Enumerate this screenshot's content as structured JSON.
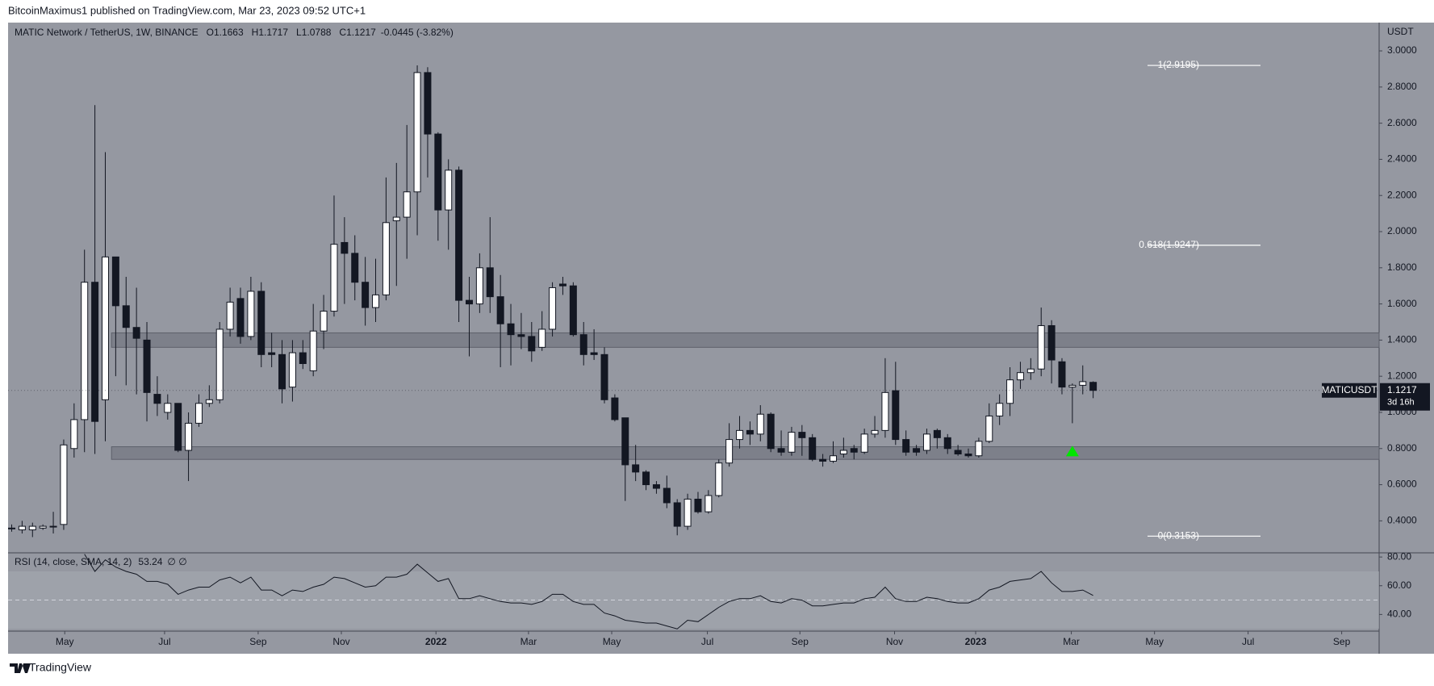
{
  "header": {
    "text": "BitcoinMaximus1 published on TradingView.com, Mar 23, 2023 09:52 UTC+1"
  },
  "footer": {
    "brand": "TradingView"
  },
  "chart_data": {
    "type": "candlestick",
    "title": "MATIC Network / TetherUS, 1W, BINANCE",
    "legend": [
      {
        "key": "O",
        "value": 1.1663
      },
      {
        "key": "H",
        "value": 1.1717
      },
      {
        "key": "L",
        "value": 1.0788
      },
      {
        "key": "C",
        "value": 1.1217
      }
    ],
    "change_label": "-0.0445 (-3.82%)",
    "axis_unit": "USDT",
    "symbol": "MATICUSDT",
    "last_price": 1.1217,
    "countdown": "3d 16h",
    "up_color": "#ffffff",
    "down_color": "#131722",
    "open": [
      0.36,
      0.35,
      0.35,
      0.36,
      0.37,
      0.38,
      0.8,
      0.96,
      1.72,
      1.07,
      1.86,
      1.59,
      1.47,
      1.4,
      1.1,
      1.0,
      1.05,
      0.79,
      0.94,
      1.05,
      1.07,
      1.46,
      1.63,
      1.42,
      1.67,
      1.33,
      1.32,
      1.14,
      1.33,
      1.23,
      1.45,
      1.56,
      1.94,
      1.88,
      1.72,
      1.58,
      1.65,
      2.06,
      2.08,
      2.22,
      2.88,
      2.54,
      2.12,
      2.34,
      1.62,
      1.6,
      1.8,
      1.64,
      1.49,
      1.43,
      1.42,
      1.36,
      1.46,
      1.71,
      1.7,
      1.43,
      1.33,
      1.32,
      1.08,
      0.97,
      0.71,
      0.67,
      0.6,
      0.58,
      0.5,
      0.37,
      0.52,
      0.45,
      0.54,
      0.72,
      0.85,
      0.9,
      0.88,
      0.99,
      0.8,
      0.78,
      0.89,
      0.86,
      0.74,
      0.73,
      0.77,
      0.8,
      0.78,
      0.88,
      0.9,
      1.12,
      0.85,
      0.8,
      0.79,
      0.9,
      0.86,
      0.79,
      0.77,
      0.76,
      0.84,
      0.98,
      1.05,
      1.18,
      1.22,
      1.24,
      1.48,
      1.28,
      1.14,
      1.15,
      1.1663
    ],
    "high": [
      0.38,
      0.4,
      0.39,
      0.38,
      0.45,
      0.85,
      1.05,
      1.9,
      2.7,
      2.44,
      1.86,
      1.75,
      1.69,
      1.5,
      1.2,
      1.1,
      1.05,
      1.0,
      1.1,
      1.15,
      1.5,
      1.69,
      1.69,
      1.75,
      1.72,
      1.44,
      1.4,
      1.4,
      1.4,
      1.6,
      1.65,
      2.2,
      2.08,
      1.98,
      1.86,
      1.85,
      2.3,
      2.38,
      2.59,
      2.92,
      2.91,
      2.55,
      2.4,
      2.36,
      1.75,
      1.88,
      2.08,
      1.76,
      1.6,
      1.55,
      1.5,
      1.56,
      1.72,
      1.75,
      1.72,
      1.5,
      1.46,
      1.36,
      1.1,
      0.97,
      0.82,
      0.68,
      0.62,
      0.65,
      0.52,
      0.55,
      0.56,
      0.57,
      0.74,
      0.94,
      0.98,
      0.95,
      1.04,
      1.0,
      0.9,
      0.92,
      0.93,
      0.88,
      0.77,
      0.84,
      0.86,
      0.82,
      0.91,
      0.98,
      1.3,
      1.28,
      0.9,
      0.82,
      0.91,
      0.91,
      0.88,
      0.82,
      0.8,
      0.86,
      1.05,
      1.1,
      1.25,
      1.28,
      1.3,
      1.58,
      1.51,
      1.3,
      1.16,
      1.26,
      1.1717
    ],
    "low": [
      0.34,
      0.33,
      0.31,
      0.35,
      0.33,
      0.35,
      0.75,
      0.78,
      0.77,
      0.84,
      1.2,
      1.15,
      1.1,
      0.95,
      0.98,
      0.96,
      0.78,
      0.62,
      0.92,
      1.03,
      1.05,
      1.42,
      1.38,
      1.4,
      1.25,
      1.25,
      1.05,
      1.06,
      1.24,
      1.2,
      1.35,
      1.53,
      1.6,
      1.62,
      1.48,
      1.5,
      1.62,
      1.7,
      1.85,
      1.98,
      2.3,
      1.95,
      1.9,
      1.5,
      1.31,
      1.55,
      1.55,
      1.25,
      1.26,
      1.35,
      1.28,
      1.34,
      1.42,
      1.65,
      1.42,
      1.26,
      1.29,
      1.05,
      0.95,
      0.51,
      0.62,
      0.57,
      0.55,
      0.47,
      0.32,
      0.35,
      0.44,
      0.44,
      0.53,
      0.7,
      0.8,
      0.82,
      0.84,
      0.78,
      0.76,
      0.76,
      0.76,
      0.73,
      0.7,
      0.72,
      0.75,
      0.74,
      0.77,
      0.86,
      0.86,
      0.82,
      0.76,
      0.76,
      0.77,
      0.8,
      0.77,
      0.76,
      0.75,
      0.75,
      0.83,
      0.93,
      0.98,
      1.13,
      1.18,
      1.2,
      1.16,
      1.1,
      0.94,
      1.1,
      1.0788
    ],
    "close": [
      0.36,
      0.37,
      0.37,
      0.37,
      0.37,
      0.82,
      0.96,
      1.72,
      0.95,
      1.86,
      1.59,
      1.47,
      1.41,
      1.11,
      1.05,
      1.05,
      0.79,
      0.94,
      1.05,
      1.07,
      1.46,
      1.61,
      1.42,
      1.67,
      1.32,
      1.32,
      1.13,
      1.33,
      1.27,
      1.45,
      1.56,
      1.93,
      1.88,
      1.72,
      1.58,
      1.65,
      2.05,
      2.08,
      2.22,
      2.88,
      2.54,
      2.12,
      2.34,
      1.62,
      1.6,
      1.8,
      1.64,
      1.49,
      1.43,
      1.42,
      1.34,
      1.46,
      1.69,
      1.7,
      1.43,
      1.32,
      1.32,
      1.07,
      0.96,
      0.71,
      0.67,
      0.6,
      0.58,
      0.5,
      0.37,
      0.52,
      0.45,
      0.54,
      0.72,
      0.85,
      0.9,
      0.88,
      0.99,
      0.8,
      0.78,
      0.89,
      0.86,
      0.74,
      0.73,
      0.76,
      0.79,
      0.78,
      0.88,
      0.9,
      1.11,
      0.85,
      0.78,
      0.78,
      0.88,
      0.86,
      0.8,
      0.77,
      0.76,
      0.84,
      0.98,
      1.05,
      1.18,
      1.22,
      1.24,
      1.48,
      1.29,
      1.14,
      1.15,
      1.17,
      1.1217
    ],
    "xlim": [
      -0.35,
      131.5
    ],
    "xticks": [
      {
        "value": 5.1,
        "label": "May"
      },
      {
        "value": 14.7,
        "label": "Jul"
      },
      {
        "value": 23.7,
        "label": "Sep"
      },
      {
        "value": 31.7,
        "label": "Nov"
      },
      {
        "value": 40.8,
        "label": "2022"
      },
      {
        "value": 49.7,
        "label": "Mar"
      },
      {
        "value": 57.7,
        "label": "May"
      },
      {
        "value": 66.9,
        "label": "Jul"
      },
      {
        "value": 75.8,
        "label": "Sep"
      },
      {
        "value": 84.9,
        "label": "Nov"
      },
      {
        "value": 92.7,
        "label": "2023"
      },
      {
        "value": 101.9,
        "label": "Mar"
      },
      {
        "value": 109.9,
        "label": "May"
      },
      {
        "value": 118.9,
        "label": "Jul"
      },
      {
        "value": 127.9,
        "label": "Sep"
      }
    ],
    "ylim": [
      0.223,
      3.152
    ],
    "yticks": [
      {
        "value": 0.4,
        "label": "0.4000"
      },
      {
        "value": 0.6,
        "label": "0.6000"
      },
      {
        "value": 0.8,
        "label": "0.8000"
      },
      {
        "value": 1.0,
        "label": "1.0000"
      },
      {
        "value": 1.2,
        "label": "1.2000"
      },
      {
        "value": 1.4,
        "label": "1.4000"
      },
      {
        "value": 1.6,
        "label": "1.6000"
      },
      {
        "value": 1.8,
        "label": "1.8000"
      },
      {
        "value": 2.0,
        "label": "2.0000"
      },
      {
        "value": 2.2,
        "label": "2.2000"
      },
      {
        "value": 2.4,
        "label": "2.4000"
      },
      {
        "value": 2.6,
        "label": "2.6000"
      },
      {
        "value": 2.8,
        "label": "2.8000"
      },
      {
        "value": 3.0,
        "label": "3.0000"
      }
    ],
    "zones": [
      [
        0.74,
        0.81
      ],
      [
        1.36,
        1.44
      ]
    ],
    "fib_levels": [
      {
        "value": 2.9195,
        "label": "1(2.9195)"
      },
      {
        "value": 1.9247,
        "label": "0.618(1.9247)"
      },
      {
        "value": 0.3153,
        "label": "0(0.3153)"
      }
    ],
    "signal_color": "#00e600",
    "rsi": {
      "title": "RSI (14, close, SMA, 14, 2)",
      "last_value": 53.24,
      "extra": "∅ ∅",
      "color": "#131722",
      "values": [
        null,
        null,
        null,
        null,
        null,
        null,
        null,
        82,
        70,
        78,
        73,
        70,
        68,
        63,
        63,
        61,
        54,
        57,
        59,
        59,
        64,
        66,
        62,
        66,
        57,
        57,
        53,
        57,
        56,
        59,
        61,
        66,
        65,
        62,
        59,
        60,
        66,
        66,
        68,
        75,
        69,
        63,
        65,
        51,
        51,
        53,
        51,
        49,
        48,
        48,
        47,
        49,
        54,
        54,
        49,
        47,
        47,
        41,
        39,
        36,
        35,
        34,
        34,
        32,
        30,
        36,
        35,
        40,
        45,
        49,
        51,
        51,
        53,
        49,
        48,
        51,
        50,
        46,
        46,
        47,
        48,
        48,
        51,
        52,
        59,
        51,
        49,
        49,
        52,
        51,
        49,
        48,
        48,
        51,
        57,
        59,
        63,
        64,
        65,
        70,
        62,
        56,
        56,
        57,
        53.24
      ],
      "ylim": [
        28.4,
        82.9
      ],
      "yticks": [
        {
          "value": 80,
          "label": "80.00"
        },
        {
          "value": 60,
          "label": "60.00"
        },
        {
          "value": 40,
          "label": "40.00"
        }
      ]
    }
  }
}
